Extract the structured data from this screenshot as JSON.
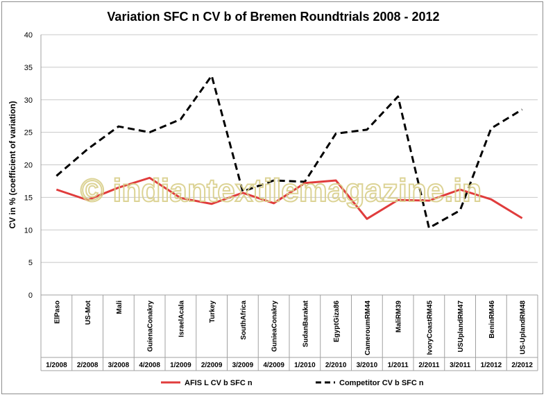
{
  "chart_data": {
    "type": "line",
    "title": "Variation SFC n  CV b of Bremen Roundtrials 2008 - 2012",
    "xlabel": "",
    "ylabel": "CV in %  (coefficient of variation)",
    "ylim": [
      0,
      40
    ],
    "yticks": [
      0,
      5,
      10,
      15,
      20,
      25,
      30,
      35,
      40
    ],
    "grid": true,
    "legend_position": "bottom",
    "categories": [
      "ElPaso",
      "US-Mot",
      "Mali",
      "GuienaConakry",
      "IsraelAcala",
      "Turkey",
      "SouthAfrica",
      "GunieaConakry",
      "SudanBarakat",
      "EgyptGiza86",
      "CameroumRM44",
      "MaliRM39",
      "IvoryCoastRM45",
      "USUplandRM47",
      "BeninRM46",
      "US-UplandRM48"
    ],
    "periods": [
      "1/2008",
      "2/2008",
      "3/2008",
      "4/2008",
      "1/2009",
      "2/2009",
      "3/2009",
      "4/2009",
      "1/2010",
      "2/2010",
      "3/2010",
      "1/2011",
      "2/2011",
      "3/2011",
      "1/2012",
      "2/2012"
    ],
    "series": [
      {
        "name": "AFIS L CV b  SFC n",
        "color": "#e03c3c",
        "style": "solid",
        "values": [
          16.2,
          14.6,
          16.5,
          18.0,
          14.9,
          14.0,
          15.7,
          14.1,
          17.2,
          17.6,
          11.7,
          14.6,
          14.5,
          16.2,
          14.7,
          11.8
        ]
      },
      {
        "name": "Competitor CV b  SFC n",
        "color": "#000000",
        "style": "dashed",
        "values": [
          18.3,
          22.4,
          25.9,
          25.0,
          27.0,
          33.7,
          15.9,
          17.6,
          17.4,
          24.8,
          25.4,
          30.5,
          10.3,
          13.0,
          25.6,
          28.5
        ]
      }
    ]
  },
  "watermark": "© indiantextilemagazine.in"
}
